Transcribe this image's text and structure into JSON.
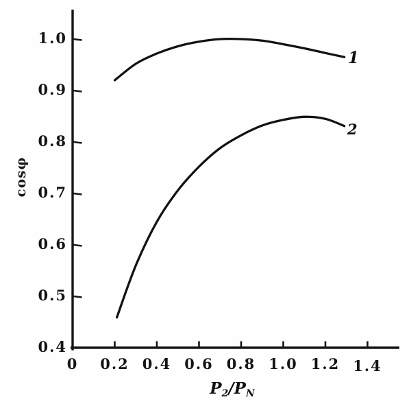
{
  "figure": {
    "background": "#fefefe",
    "ink_color": "#161616",
    "y_axis_label": "cosφ",
    "x_label_parts": {
      "base1": "P",
      "sub1": "2",
      "sep": "/",
      "base2": "P",
      "sub2": "N"
    },
    "curve_labels": {
      "first": "1",
      "second": "2"
    }
  },
  "chart_data": {
    "type": "line",
    "title": "",
    "xlabel": "P2/PN",
    "ylabel": "cosφ",
    "xlim": [
      0,
      1.55
    ],
    "ylim": [
      0.4,
      1.06
    ],
    "grid": false,
    "legend_position": "inline-right-of-curve",
    "x_ticks": [
      0.2,
      0.4,
      0.6,
      0.8,
      1.0,
      1.2,
      1.4
    ],
    "y_ticks": [
      0.5,
      0.6,
      0.7,
      0.8,
      0.9,
      1.0
    ],
    "x_tick_labels": [
      "0",
      "0.2",
      "0.4",
      "0.6",
      "0.8",
      "1.0",
      "1.2",
      "1.4"
    ],
    "x_tick_label_values": [
      0,
      0.2,
      0.4,
      0.6,
      0.8,
      1.0,
      1.2,
      1.4
    ],
    "y_tick_labels": [
      "0.4",
      "0.5",
      "0.6",
      "0.7",
      "0.8",
      "0.9",
      "1.0"
    ],
    "y_tick_label_values": [
      0.4,
      0.5,
      0.6,
      0.7,
      0.8,
      0.9,
      1.0
    ],
    "series": [
      {
        "name": "1",
        "x": [
          0.2,
          0.3,
          0.4,
          0.5,
          0.6,
          0.7,
          0.8,
          0.9,
          1.0,
          1.1,
          1.2,
          1.29
        ],
        "y": [
          0.92,
          0.952,
          0.972,
          0.986,
          0.995,
          1.0,
          1.0,
          0.997,
          0.99,
          0.982,
          0.973,
          0.965
        ]
      },
      {
        "name": "2",
        "x": [
          0.21,
          0.3,
          0.4,
          0.5,
          0.6,
          0.7,
          0.8,
          0.9,
          1.0,
          1.1,
          1.2,
          1.29
        ],
        "y": [
          0.459,
          0.56,
          0.645,
          0.706,
          0.752,
          0.788,
          0.813,
          0.832,
          0.843,
          0.849,
          0.845,
          0.831
        ]
      }
    ]
  }
}
